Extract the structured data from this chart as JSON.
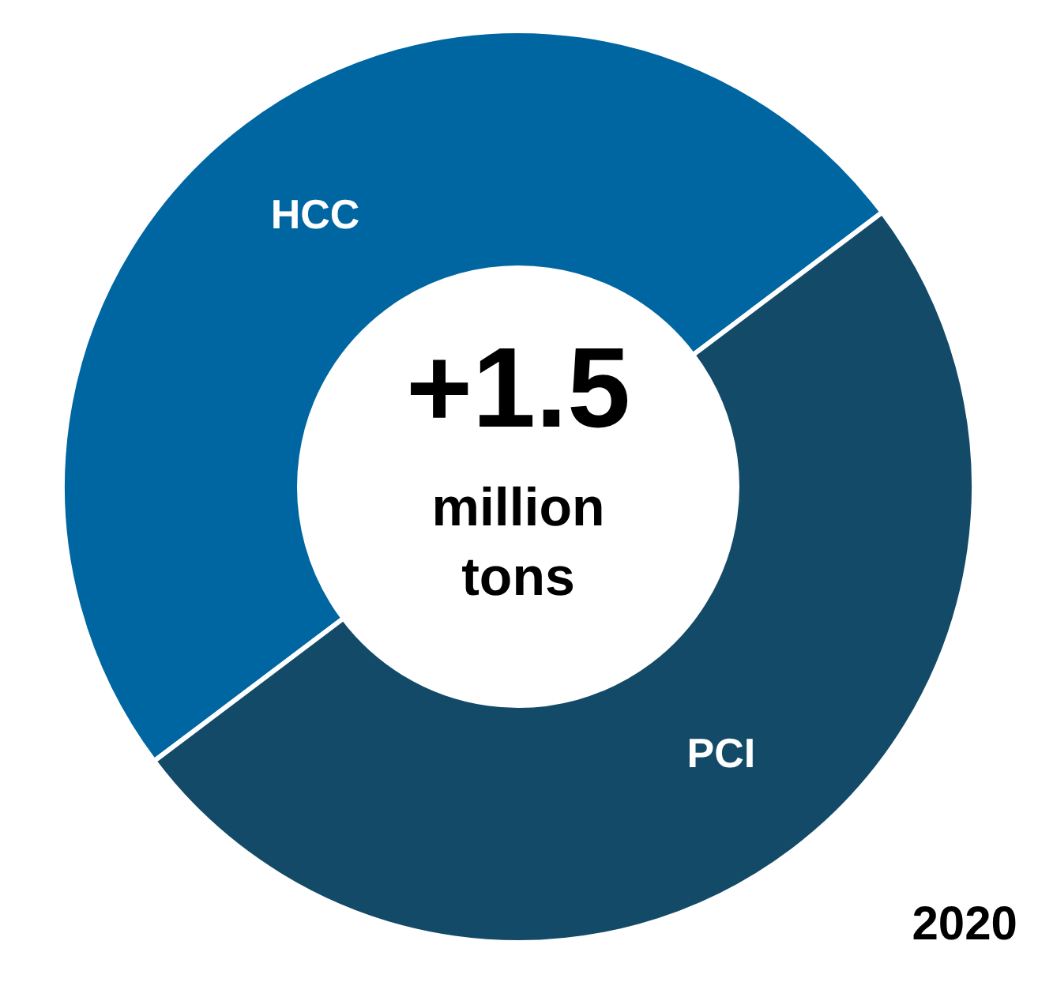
{
  "chart_data": {
    "type": "donut",
    "categories": [
      "HCC",
      "PCI"
    ],
    "values": [
      50,
      50
    ],
    "colors": [
      "#0066a1",
      "#134a68"
    ],
    "legend": false,
    "annotations": [
      "+1.5",
      "million tons",
      "2020"
    ]
  }
}
